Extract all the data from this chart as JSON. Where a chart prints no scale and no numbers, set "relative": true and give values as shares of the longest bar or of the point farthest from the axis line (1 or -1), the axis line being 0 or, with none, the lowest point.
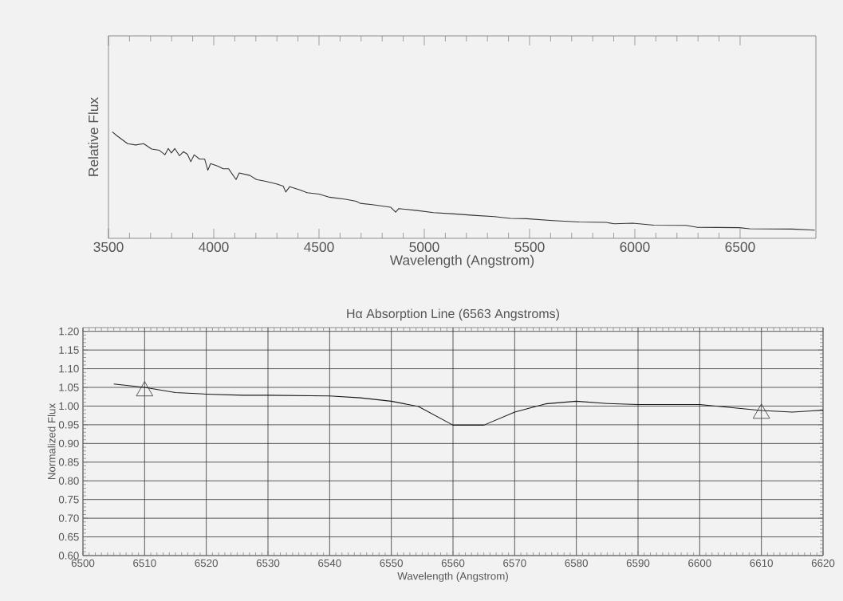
{
  "chart_data": [
    {
      "type": "line",
      "relative": true,
      "xlabel": "Wavelength (Angstrom)",
      "ylabel": "Relative Flux",
      "color": "#333333",
      "tick_labels": "x",
      "xlim": [
        3500,
        6860
      ],
      "xticks": [
        3500,
        4000,
        4500,
        5000,
        5500,
        6000,
        6500
      ],
      "x": [
        3518,
        3540,
        3591,
        3629,
        3667,
        3705,
        3742,
        3768,
        3784,
        3799,
        3815,
        3837,
        3856,
        3875,
        3891,
        3907,
        3932,
        3957,
        3972,
        3985,
        4020,
        4045,
        4071,
        4106,
        4121,
        4172,
        4203,
        4247,
        4298,
        4330,
        4342,
        4361,
        4412,
        4443,
        4500,
        4550,
        4626,
        4677,
        4696,
        4753,
        4841,
        4864,
        4879,
        4967,
        5043,
        5144,
        5232,
        5333,
        5409,
        5485,
        5611,
        5737,
        5864,
        5902,
        5990,
        6091,
        6243,
        6293,
        6495,
        6546,
        6748,
        6855
      ],
      "values": [
        1.0,
        0.963,
        0.888,
        0.876,
        0.888,
        0.838,
        0.826,
        0.784,
        0.843,
        0.801,
        0.843,
        0.776,
        0.813,
        0.789,
        0.719,
        0.784,
        0.744,
        0.744,
        0.639,
        0.701,
        0.677,
        0.652,
        0.652,
        0.552,
        0.614,
        0.59,
        0.552,
        0.535,
        0.51,
        0.49,
        0.435,
        0.485,
        0.453,
        0.428,
        0.415,
        0.386,
        0.366,
        0.348,
        0.328,
        0.316,
        0.291,
        0.246,
        0.279,
        0.261,
        0.241,
        0.229,
        0.216,
        0.204,
        0.187,
        0.184,
        0.167,
        0.154,
        0.149,
        0.137,
        0.142,
        0.124,
        0.122,
        0.104,
        0.1,
        0.09,
        0.087,
        0.077
      ]
    },
    {
      "type": "line",
      "title": "Hα Absorption Line (6563 Angstroms)",
      "xlabel": "Wavelength (Angstrom)",
      "ylabel": "Normalized Flux",
      "grid": true,
      "xlim": [
        6500,
        6620
      ],
      "ylim": [
        0.6,
        1.21
      ],
      "xticks": [
        6500,
        6510,
        6520,
        6530,
        6540,
        6550,
        6560,
        6570,
        6580,
        6590,
        6600,
        6610,
        6620
      ],
      "yticks": [
        {
          "value": 0.6,
          "label": "0.60"
        },
        {
          "value": 0.65,
          "label": "0.65"
        },
        {
          "value": 0.7,
          "label": "0.70"
        },
        {
          "value": 0.75,
          "label": "0.75"
        },
        {
          "value": 0.8,
          "label": "0.80"
        },
        {
          "value": 0.85,
          "label": "0.85"
        },
        {
          "value": 0.9,
          "label": "0.90"
        },
        {
          "value": 0.95,
          "label": "0.95"
        },
        {
          "value": 1.0,
          "label": "1.00"
        },
        {
          "value": 1.05,
          "label": "1.05"
        },
        {
          "value": 1.1,
          "label": "1.10"
        },
        {
          "value": 1.15,
          "label": "1.15"
        },
        {
          "value": 1.2,
          "label": "1.20"
        }
      ],
      "series": [
        {
          "type": "line",
          "color": "#1a1a1a",
          "x": [
            6505,
            6510,
            6515,
            6520,
            6526,
            6530,
            6540,
            6545,
            6550,
            6554.4,
            6560,
            6565,
            6570,
            6575,
            6580,
            6585,
            6590,
            6600,
            6605,
            6610,
            6615,
            6620
          ],
          "values": [
            1.059,
            1.05,
            1.036,
            1.032,
            1.029,
            1.029,
            1.027,
            1.022,
            1.013,
            0.999,
            0.949,
            0.949,
            0.984,
            1.006,
            1.013,
            1.007,
            1.004,
            1.004,
            0.996,
            0.988,
            0.984,
            0.989
          ]
        },
        {
          "type": "scatter",
          "marker": "triangle",
          "color": "#333333",
          "x": [
            6510,
            6610
          ],
          "values": [
            1.04,
            0.98
          ]
        }
      ]
    }
  ]
}
